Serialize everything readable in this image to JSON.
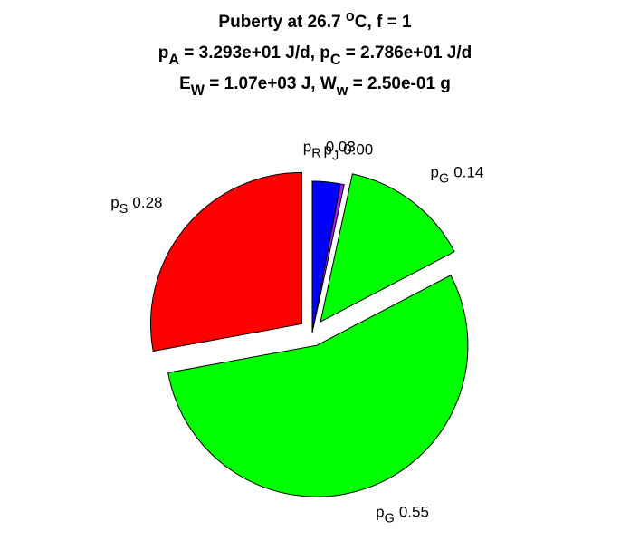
{
  "chart_data": {
    "type": "pie",
    "title_lines": [
      [
        {
          "text": "Puberty at 26.7 "
        },
        {
          "text": "o",
          "script": "sup"
        },
        {
          "text": "C, f = 1"
        }
      ],
      [
        {
          "text": "p"
        },
        {
          "text": "A",
          "script": "sub"
        },
        {
          "text": " = 3.293e+01 J/d,  p"
        },
        {
          "text": "C",
          "script": "sub"
        },
        {
          "text": " = 2.786e+01 J/d"
        }
      ],
      [
        {
          "text": "E"
        },
        {
          "text": "W",
          "script": "sub"
        },
        {
          "text": " = 1.07e+03 J, W"
        },
        {
          "text": "w",
          "script": "sub"
        },
        {
          "text": " = 2.50e-01 g"
        }
      ]
    ],
    "labels": [
      [
        {
          "text": "p"
        },
        {
          "text": "R",
          "script": "sub"
        }
      ],
      [
        {
          "text": "p"
        },
        {
          "text": "J",
          "script": "sub"
        }
      ],
      [
        {
          "text": "p"
        },
        {
          "text": "G",
          "script": "sub"
        }
      ],
      [
        {
          "text": "p"
        },
        {
          "text": "G",
          "script": "sub"
        }
      ],
      [
        {
          "text": "p"
        },
        {
          "text": "S",
          "script": "sub"
        }
      ]
    ],
    "values": [
      0.03,
      0.004,
      0.14,
      0.55,
      0.28
    ],
    "value_labels": [
      "0.03",
      "0.00",
      "0.14",
      "0.55",
      "0.28"
    ],
    "colors": [
      "#0000ff",
      "#a020f0",
      "#00ff00",
      "#00ff00",
      "#ff0000"
    ],
    "explode": [
      false,
      false,
      true,
      true,
      true
    ]
  }
}
